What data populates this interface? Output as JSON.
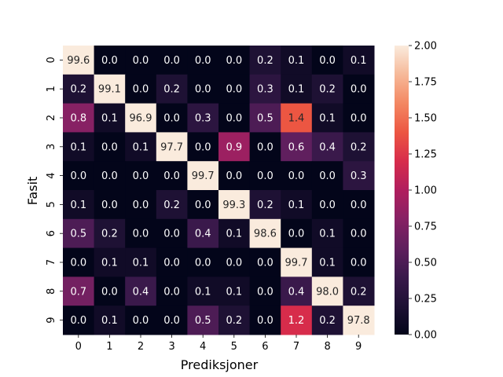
{
  "chart_data": {
    "type": "heatmap",
    "title": "",
    "xlabel": "Prediksjoner",
    "ylabel": "Fasit",
    "x_categories": [
      "0",
      "1",
      "2",
      "3",
      "4",
      "5",
      "6",
      "7",
      "8",
      "9"
    ],
    "y_categories": [
      "0",
      "1",
      "2",
      "3",
      "4",
      "5",
      "6",
      "7",
      "8",
      "9"
    ],
    "values": [
      [
        99.6,
        0.0,
        0.0,
        0.0,
        0.0,
        0.0,
        0.2,
        0.1,
        0.0,
        0.1
      ],
      [
        0.2,
        99.1,
        0.0,
        0.2,
        0.0,
        0.0,
        0.3,
        0.1,
        0.2,
        0.0
      ],
      [
        0.8,
        0.1,
        96.9,
        0.0,
        0.3,
        0.0,
        0.5,
        1.4,
        0.1,
        0.0
      ],
      [
        0.1,
        0.0,
        0.1,
        97.7,
        0.0,
        0.9,
        0.0,
        0.6,
        0.4,
        0.2
      ],
      [
        0.0,
        0.0,
        0.0,
        0.0,
        99.7,
        0.0,
        0.0,
        0.0,
        0.0,
        0.3
      ],
      [
        0.1,
        0.0,
        0.0,
        0.2,
        0.0,
        99.3,
        0.2,
        0.1,
        0.0,
        0.0
      ],
      [
        0.5,
        0.2,
        0.0,
        0.0,
        0.4,
        0.1,
        98.6,
        0.0,
        0.1,
        0.0
      ],
      [
        0.0,
        0.1,
        0.1,
        0.0,
        0.0,
        0.0,
        0.0,
        99.7,
        0.1,
        0.0
      ],
      [
        0.7,
        0.0,
        0.4,
        0.0,
        0.1,
        0.1,
        0.0,
        0.4,
        98.0,
        0.2
      ],
      [
        0.0,
        0.1,
        0.0,
        0.0,
        0.5,
        0.2,
        0.0,
        1.2,
        0.2,
        97.8
      ]
    ],
    "colorbar": {
      "range": [
        0.0,
        2.0
      ],
      "ticks": [
        "0.00",
        "0.25",
        "0.50",
        "0.75",
        "1.00",
        "1.25",
        "1.50",
        "1.75",
        "2.00"
      ],
      "colormap": "rocket"
    },
    "grid": false,
    "legend": "colorbar-right"
  }
}
